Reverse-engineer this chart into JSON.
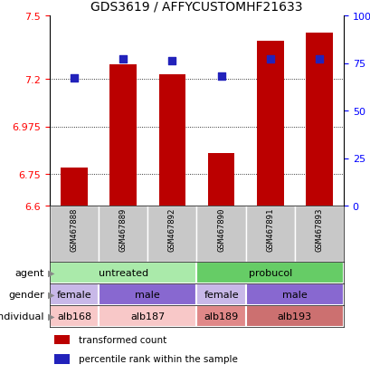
{
  "title": "GDS3619 / AFFYCUSTOMHF21633",
  "samples": [
    "GSM467888",
    "GSM467889",
    "GSM467892",
    "GSM467890",
    "GSM467891",
    "GSM467893"
  ],
  "bar_values": [
    6.78,
    7.27,
    7.22,
    6.85,
    7.38,
    7.42
  ],
  "bar_bottom": 6.6,
  "percentile_values": [
    67,
    77,
    76,
    68,
    77,
    77
  ],
  "ylim": [
    6.6,
    7.5
  ],
  "yticks_left": [
    6.6,
    6.75,
    6.975,
    7.2,
    7.5
  ],
  "yticks_right": [
    0,
    25,
    50,
    75,
    100
  ],
  "yticks_right_labels": [
    "0",
    "25",
    "50",
    "75",
    "100%"
  ],
  "bar_color": "#bb0000",
  "dot_color": "#2222bb",
  "bar_width": 0.55,
  "dot_size": 30,
  "n_samples": 6,
  "agent_groups": [
    {
      "cols": [
        0,
        1,
        2
      ],
      "color": "#aaeaaa",
      "label": "untreated"
    },
    {
      "cols": [
        3,
        4,
        5
      ],
      "color": "#66cc66",
      "label": "probucol"
    }
  ],
  "gender_groups": [
    {
      "cols": [
        0
      ],
      "color": "#c8b8e8",
      "label": "female"
    },
    {
      "cols": [
        1,
        2
      ],
      "color": "#8868d0",
      "label": "male"
    },
    {
      "cols": [
        3
      ],
      "color": "#c8b8e8",
      "label": "female"
    },
    {
      "cols": [
        4,
        5
      ],
      "color": "#8868d0",
      "label": "male"
    }
  ],
  "individual_groups": [
    {
      "cols": [
        0
      ],
      "color": "#f8c8c8",
      "label": "alb168"
    },
    {
      "cols": [
        1,
        2
      ],
      "color": "#f8c8c8",
      "label": "alb187"
    },
    {
      "cols": [
        3
      ],
      "color": "#e08888",
      "label": "alb189"
    },
    {
      "cols": [
        4,
        5
      ],
      "color": "#cc7070",
      "label": "alb193"
    }
  ],
  "sample_box_color": "#c8c8c8",
  "row_label_color": "#444444",
  "arrow_color": "#888888"
}
